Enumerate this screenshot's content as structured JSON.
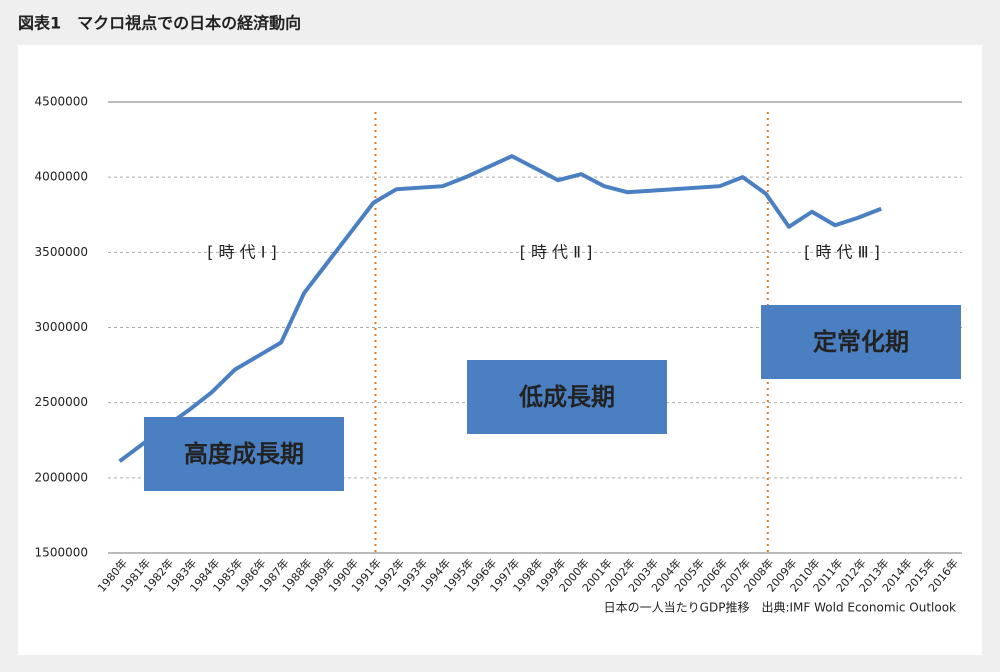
{
  "chart_data": {
    "type": "line",
    "title": "図表1　マクロ視点での日本の経済動向",
    "categories": [
      "1980年",
      "1981年",
      "1982年",
      "1983年",
      "1984年",
      "1985年",
      "1986年",
      "1987年",
      "1988年",
      "1989年",
      "1990年",
      "1991年",
      "1992年",
      "1993年",
      "1994年",
      "1995年",
      "1996年",
      "1997年",
      "1998年",
      "1999年",
      "2000年",
      "2001年",
      "2002年",
      "2003年",
      "2004年",
      "2005年",
      "2006年",
      "2007年",
      "2008年",
      "2009年",
      "2010年",
      "2011年",
      "2012年",
      "2013年",
      "2014年",
      "2015年",
      "2016年"
    ],
    "series": [
      {
        "name": "日本の一人当たりGDP推移",
        "color": "#4a7fc1",
        "values": [
          2110000,
          2225000,
          2340000,
          2450000,
          2570000,
          2720000,
          2810000,
          2900000,
          3230000,
          3430000,
          3630000,
          3830000,
          3920000,
          3930000,
          3940000,
          4000000,
          4070000,
          4140000,
          4060000,
          3980000,
          4020000,
          3940000,
          3900000,
          3910000,
          3920000,
          3930000,
          3940000,
          4000000,
          3890000,
          3670000,
          3770000,
          3680000,
          3730000,
          3790000,
          null,
          null,
          null
        ]
      }
    ],
    "ylim": [
      1500000,
      4500000
    ],
    "yticks": [
      1500000,
      2000000,
      2500000,
      3000000,
      3500000,
      4000000,
      4500000
    ],
    "grid": true,
    "dividers": [
      "1991年",
      "2008年"
    ],
    "divider_color": "#e07a2a",
    "eras": [
      {
        "label": "[ 時 代 Ⅰ ]",
        "phase": "高度成長期"
      },
      {
        "label": "[ 時 代 Ⅱ ]",
        "phase": "低成長期"
      },
      {
        "label": "[ 時 代 Ⅲ ]",
        "phase": "定常化期"
      }
    ],
    "source": "日本の一人当たりGDP推移　出典:IMF Wold Economic Outlook"
  }
}
